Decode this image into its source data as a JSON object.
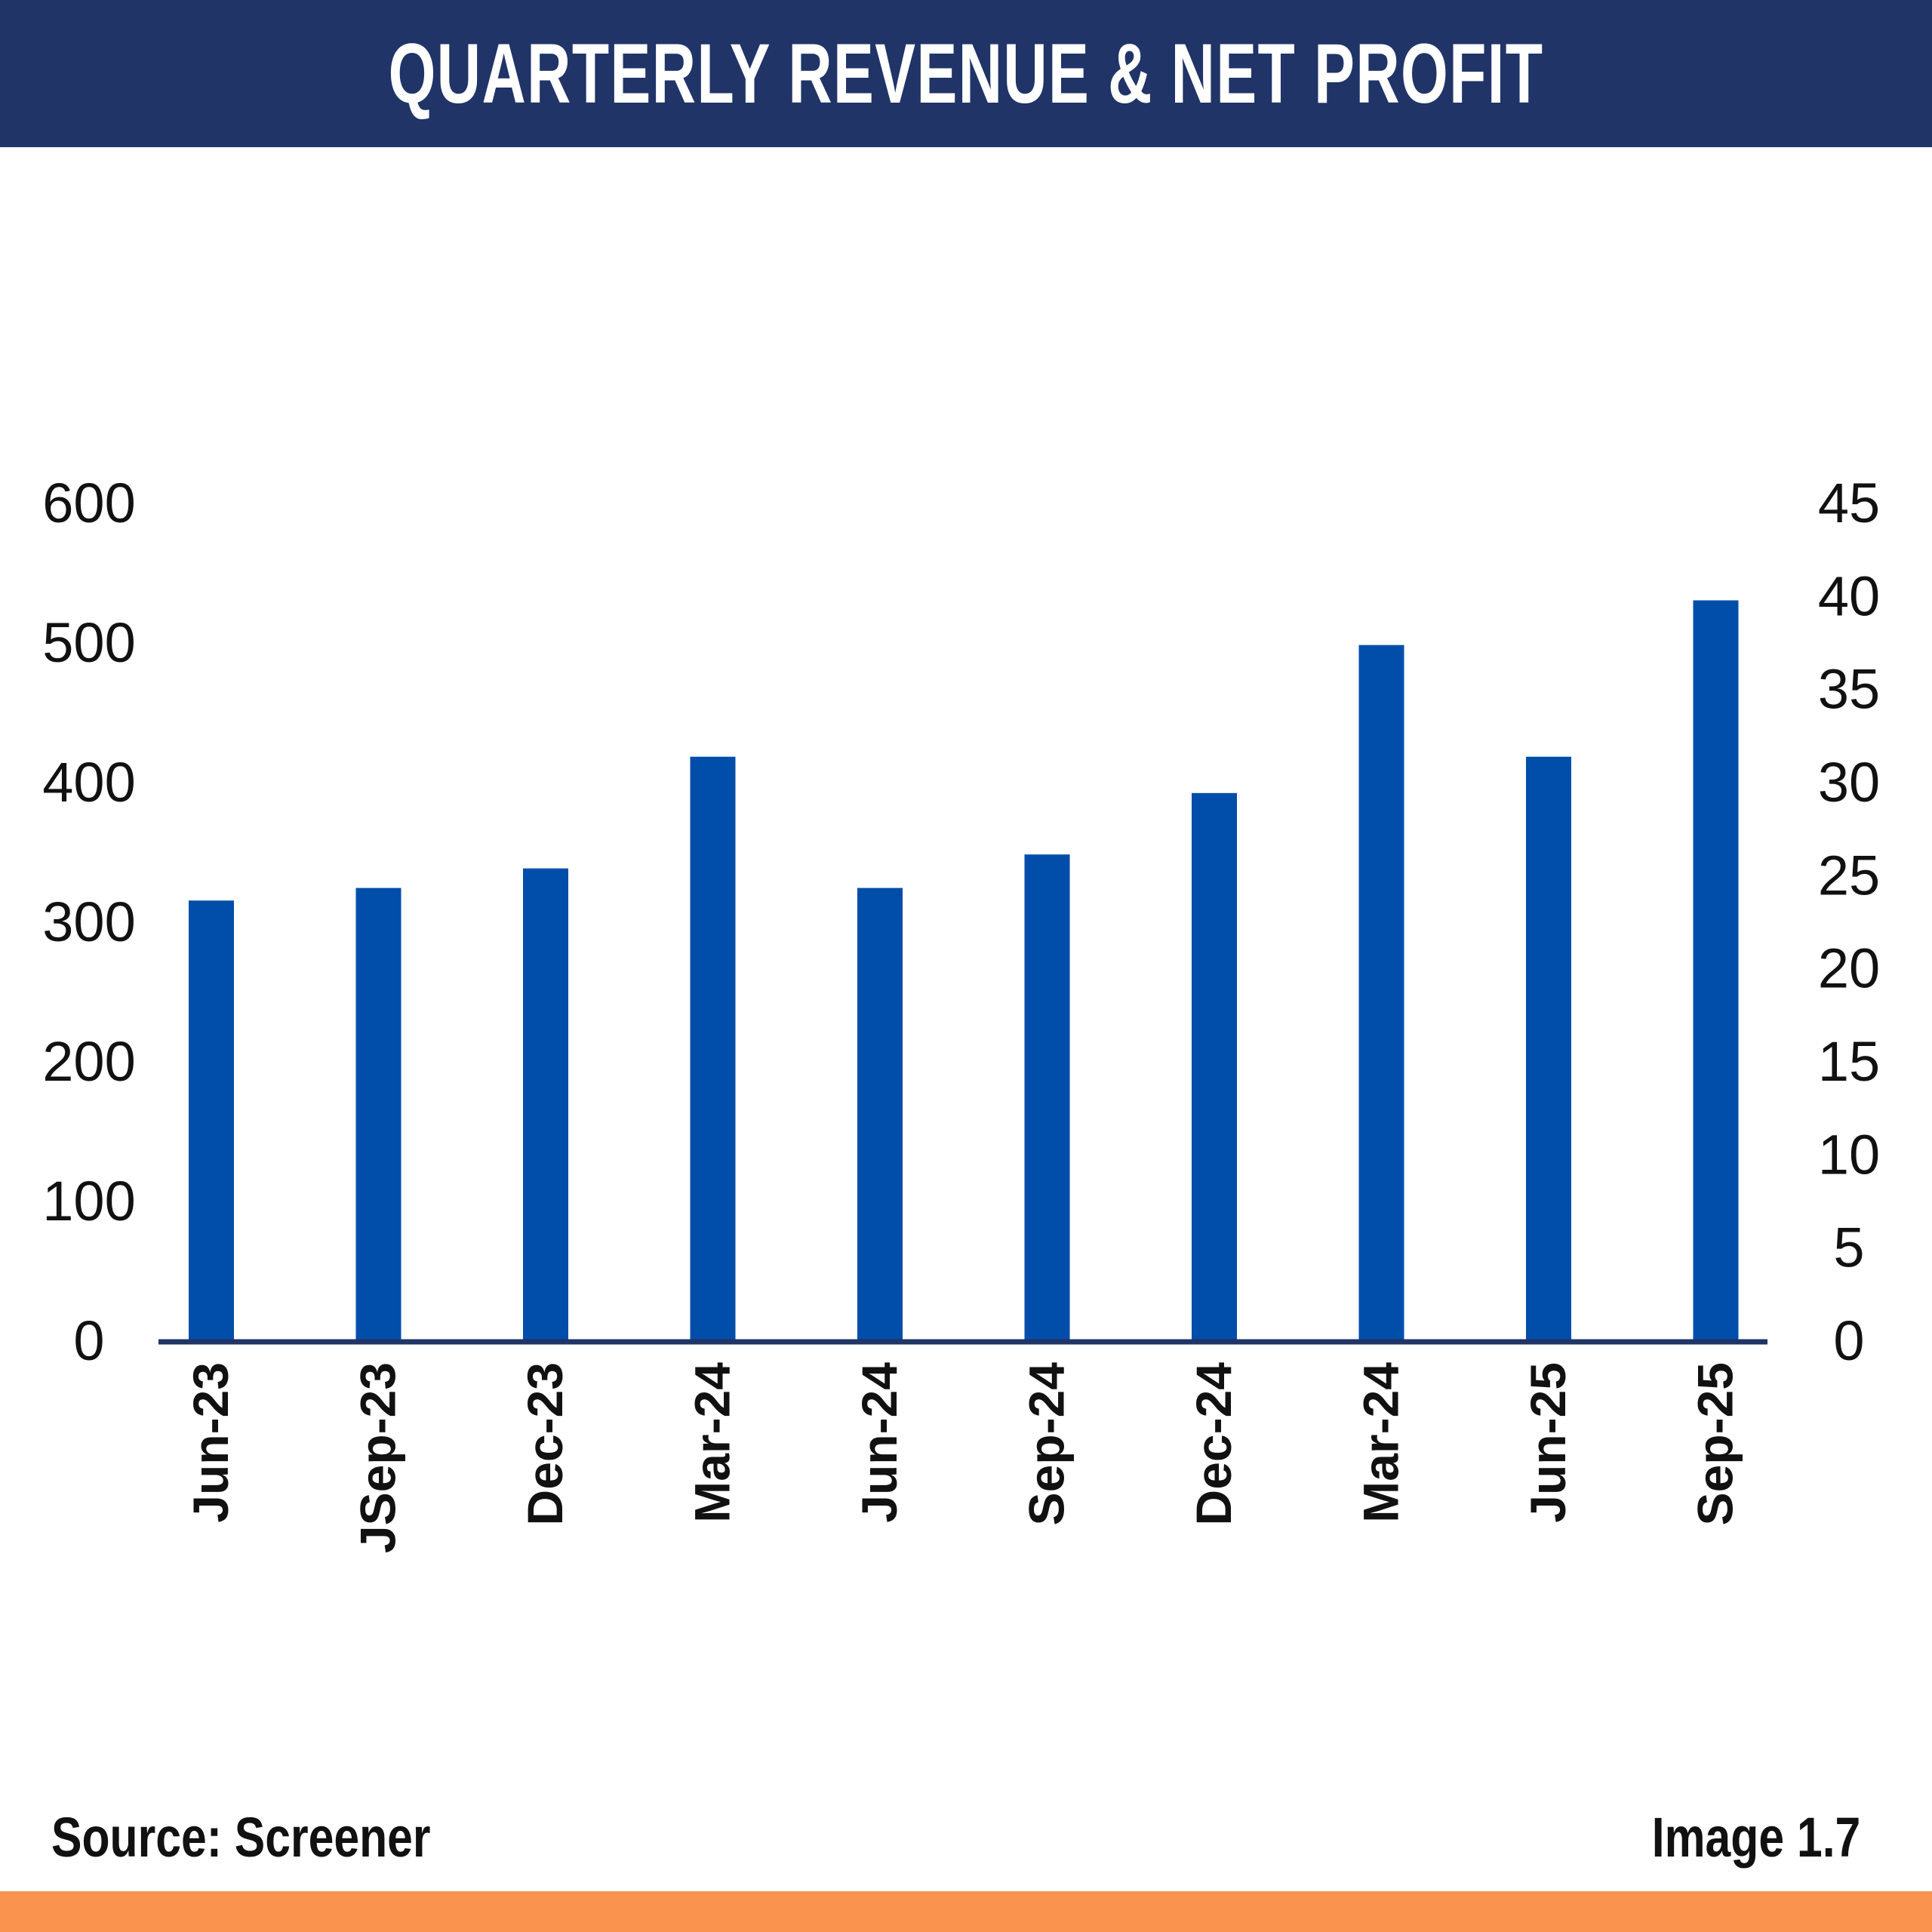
{
  "title": "QUARTERLY REVENUE & NET PROFIT",
  "source": "Source: Screener",
  "image_label": "Image 1.7",
  "colors": {
    "header_bg": "#203467",
    "bar": "#004EAA",
    "axis_line": "#203467",
    "footer_bg": "#F9934E"
  },
  "chart_data": {
    "type": "bar",
    "title": "QUARTERLY REVENUE & NET PROFIT",
    "categories": [
      "Jun-23",
      "JSep-23",
      "Dec-23",
      "Mar-24",
      "Jun-24",
      "Sep-24",
      "Dec-24",
      "Mar-24",
      "Jun-25",
      "Sep-25"
    ],
    "series": [
      {
        "name": "Revenue",
        "axis": "left",
        "values": [
          315,
          324,
          338,
          418,
          324,
          348,
          392,
          498,
          418,
          530
        ]
      }
    ],
    "ylim": [
      0,
      600
    ],
    "y_ticks": [
      "0",
      "100",
      "200",
      "300",
      "400",
      "500",
      "600"
    ],
    "y2lim": [
      0,
      45
    ],
    "y2_ticks": [
      "0",
      "5",
      "10",
      "15",
      "20",
      "25",
      "30",
      "35",
      "40",
      "45"
    ],
    "xlabel": "",
    "ylabel": "",
    "grid": false,
    "legend": "none"
  }
}
